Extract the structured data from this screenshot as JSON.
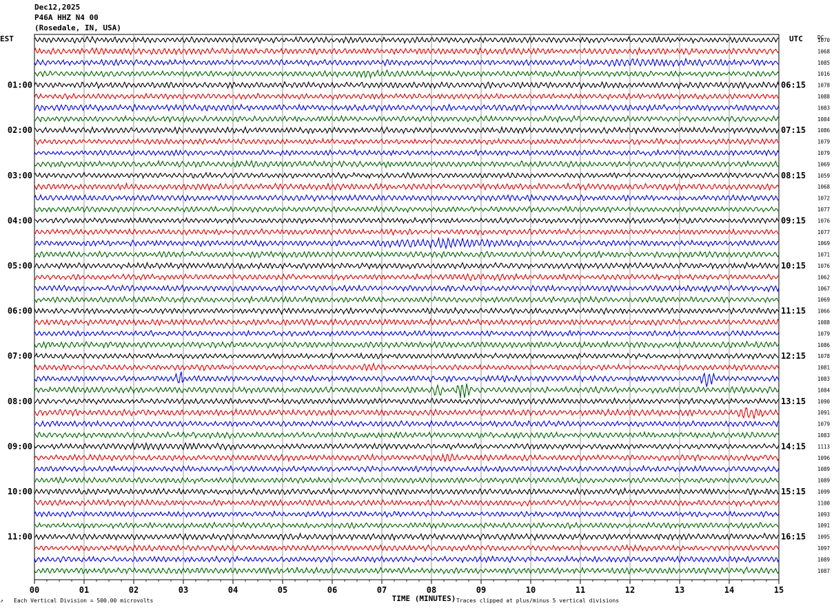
{
  "header": {
    "date": "Dec12,2025",
    "station": "P46A HHZ N4 00",
    "location": "(Rosedale, IN, USA)"
  },
  "labels": {
    "left_tz": "EST",
    "right_tz": "UTC",
    "right_col": "DC",
    "xlabel": "TIME (MINUTES)",
    "scale_note": "Each Vertical Division =  500.00 microvolts",
    "clip_note": "Traces clipped at plus/minus 5 vertical divisions"
  },
  "colors": {
    "palette": [
      "#000000",
      "#e00000",
      "#0000e0",
      "#006400"
    ],
    "grid": "#808080"
  },
  "chart_data": {
    "type": "line",
    "title": "",
    "xlabel": "TIME (MINUTES)",
    "xlim": [
      0,
      15
    ],
    "x_ticks": [
      "00",
      "01",
      "02",
      "03",
      "04",
      "05",
      "06",
      "07",
      "08",
      "09",
      "10",
      "11",
      "12",
      "13",
      "14",
      "15"
    ],
    "left_hour_labels": [
      "01:00",
      "02:00",
      "03:00",
      "04:00",
      "05:00",
      "06:00",
      "07:00",
      "08:00",
      "09:00",
      "10:00",
      "11:00"
    ],
    "right_hour_labels": [
      "06:15",
      "07:15",
      "08:15",
      "09:15",
      "10:15",
      "11:15",
      "12:15",
      "13:15",
      "14:15",
      "15:15",
      "16:15"
    ],
    "dc_offsets": [
      1070,
      1068,
      1085,
      1016,
      1078,
      1088,
      1083,
      1084,
      1086,
      1079,
      1079,
      1069,
      1059,
      1068,
      1072,
      1077,
      1076,
      1077,
      1069,
      1071,
      1076,
      1062,
      1067,
      1069,
      1066,
      1088,
      1079,
      1086,
      1078,
      1081,
      1083,
      1084,
      1090,
      1091,
      1079,
      1083,
      1113,
      1096,
      1089,
      1089,
      1099,
      1100,
      1093,
      1091,
      1095,
      1097,
      1089,
      1087
    ],
    "trace_minutes": 15,
    "traces_per_hour": 4,
    "events": [
      {
        "trace": 2,
        "start": 10.0,
        "end": 15.0,
        "amp": 1.5
      },
      {
        "trace": 3,
        "start": 5.5,
        "end": 8.0,
        "amp": 1.5
      },
      {
        "trace": 18,
        "start": 6.5,
        "end": 10.0,
        "amp": 1.9
      },
      {
        "trace": 21,
        "start": 8.0,
        "end": 10.0,
        "amp": 1.5
      },
      {
        "trace": 29,
        "start": 1.2,
        "end": 1.8,
        "amp": 1.4
      },
      {
        "trace": 29,
        "start": 3.0,
        "end": 3.9,
        "amp": 1.4
      },
      {
        "trace": 29,
        "start": 6.5,
        "end": 7.0,
        "amp": 1.6
      },
      {
        "trace": 30,
        "start": 2.85,
        "end": 3.0,
        "amp": 4.0
      },
      {
        "trace": 30,
        "start": 13.4,
        "end": 13.7,
        "amp": 4.0
      },
      {
        "trace": 31,
        "start": 8.05,
        "end": 8.2,
        "amp": 3.2
      },
      {
        "trace": 31,
        "start": 8.5,
        "end": 8.8,
        "amp": 3.8
      },
      {
        "trace": 33,
        "start": 14.1,
        "end": 14.7,
        "amp": 2.4
      },
      {
        "trace": 36,
        "start": 0.0,
        "end": 5.5,
        "amp": 1.4
      },
      {
        "trace": 37,
        "start": 8.1,
        "end": 8.6,
        "amp": 1.9
      }
    ]
  }
}
